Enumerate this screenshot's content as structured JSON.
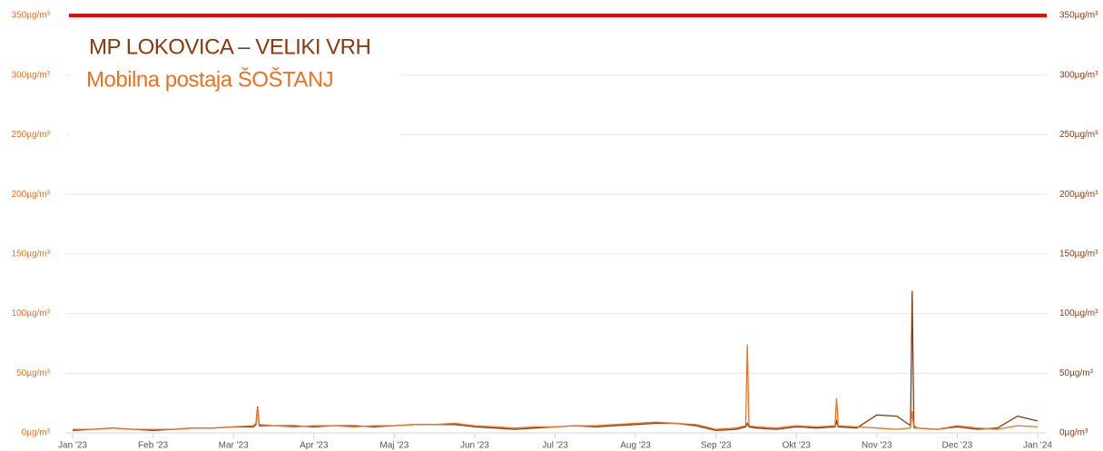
{
  "chart_data": {
    "type": "line",
    "x": [
      0,
      0.25,
      0.5,
      0.75,
      1,
      1.25,
      1.5,
      1.75,
      2,
      2.25,
      2.28,
      2.3,
      2.32,
      2.5,
      2.75,
      3,
      3.25,
      3.5,
      3.75,
      4,
      4.25,
      4.5,
      4.75,
      5,
      5.25,
      5.5,
      5.75,
      6,
      6.25,
      6.5,
      6.75,
      7,
      7.25,
      7.5,
      7.75,
      8,
      8.25,
      8.37,
      8.39,
      8.41,
      8.5,
      8.75,
      9,
      9.25,
      9.48,
      9.5,
      9.52,
      9.75,
      10,
      10.25,
      10.42,
      10.44,
      10.46,
      10.5,
      10.75,
      11,
      11.25,
      11.5,
      11.75,
      12
    ],
    "series": [
      {
        "name": "MP LOKOVICA – VELIKI VRH",
        "color": "#8b3a0f",
        "axis": "y2",
        "values": [
          2,
          3,
          4,
          3,
          2,
          3,
          4,
          4,
          5,
          5,
          7,
          22,
          6,
          6,
          6,
          5,
          6,
          6,
          5,
          6,
          7,
          7,
          7,
          5,
          4,
          3,
          4,
          5,
          6,
          5,
          6,
          7,
          8,
          8,
          6,
          2,
          3,
          5,
          8,
          5,
          4,
          3,
          5,
          4,
          5,
          10,
          5,
          4,
          15,
          14,
          6,
          119,
          6,
          4,
          3,
          5,
          3,
          4,
          14,
          10
        ]
      },
      {
        "name": "Mobilna postaja ŠOŠTANJ",
        "color": "#f07020",
        "values": [
          3,
          3,
          4,
          3,
          3,
          3,
          4,
          4,
          5,
          6,
          8,
          21,
          7,
          6,
          5,
          6,
          6,
          5,
          6,
          6,
          7,
          7,
          8,
          6,
          5,
          4,
          5,
          5,
          6,
          6,
          7,
          8,
          9,
          8,
          7,
          3,
          4,
          6,
          74,
          6,
          5,
          4,
          6,
          5,
          6,
          29,
          6,
          5,
          4,
          3,
          4,
          18,
          4,
          4,
          3,
          6,
          4,
          3,
          6,
          5
        ]
      }
    ],
    "xlim": [
      0,
      12
    ],
    "xticks": [
      {
        "value": 0,
        "label": "Jan '23"
      },
      {
        "value": 1,
        "label": "Feb '23"
      },
      {
        "value": 2,
        "label": "Mar '23"
      },
      {
        "value": 3,
        "label": "Apr '23"
      },
      {
        "value": 4,
        "label": "Maj '23"
      },
      {
        "value": 5,
        "label": "Jun '23"
      },
      {
        "value": 6,
        "label": "Jul '23"
      },
      {
        "value": 7,
        "label": "Aug '23"
      },
      {
        "value": 8,
        "label": "Sep '23"
      },
      {
        "value": 9,
        "label": "Okt '23"
      },
      {
        "value": 10,
        "label": "Nov '23"
      },
      {
        "value": 11,
        "label": "Dec '23"
      },
      {
        "value": 12,
        "label": "Jan '24"
      }
    ],
    "ylim": [
      0,
      350
    ],
    "yticks": [
      {
        "value": 0,
        "label": "0µg/m³"
      },
      {
        "value": 50,
        "label": "50µg/m³"
      },
      {
        "value": 100,
        "label": "100µg/m³"
      },
      {
        "value": 150,
        "label": "150µg/m³"
      },
      {
        "value": 200,
        "label": "200µg/m³"
      },
      {
        "value": 250,
        "label": "250µg/m³"
      },
      {
        "value": 300,
        "label": "300µg/m³"
      },
      {
        "value": 350,
        "label": "350µg/m³"
      }
    ],
    "y2lim": [
      0,
      350
    ],
    "y2ticks": [
      {
        "value": 0,
        "label": "0µg/m³"
      },
      {
        "value": 50,
        "label": "50µg/m³"
      },
      {
        "value": 100,
        "label": "100µg/m³"
      },
      {
        "value": 150,
        "label": "150µg/m³"
      },
      {
        "value": 200,
        "label": "200µg/m³"
      },
      {
        "value": 250,
        "label": "250µg/m³"
      },
      {
        "value": 300,
        "label": "300µg/m³"
      },
      {
        "value": 350,
        "label": "350µg/m³"
      }
    ],
    "threshold": {
      "value": 350,
      "color": "#ff0000"
    },
    "grid": true
  }
}
